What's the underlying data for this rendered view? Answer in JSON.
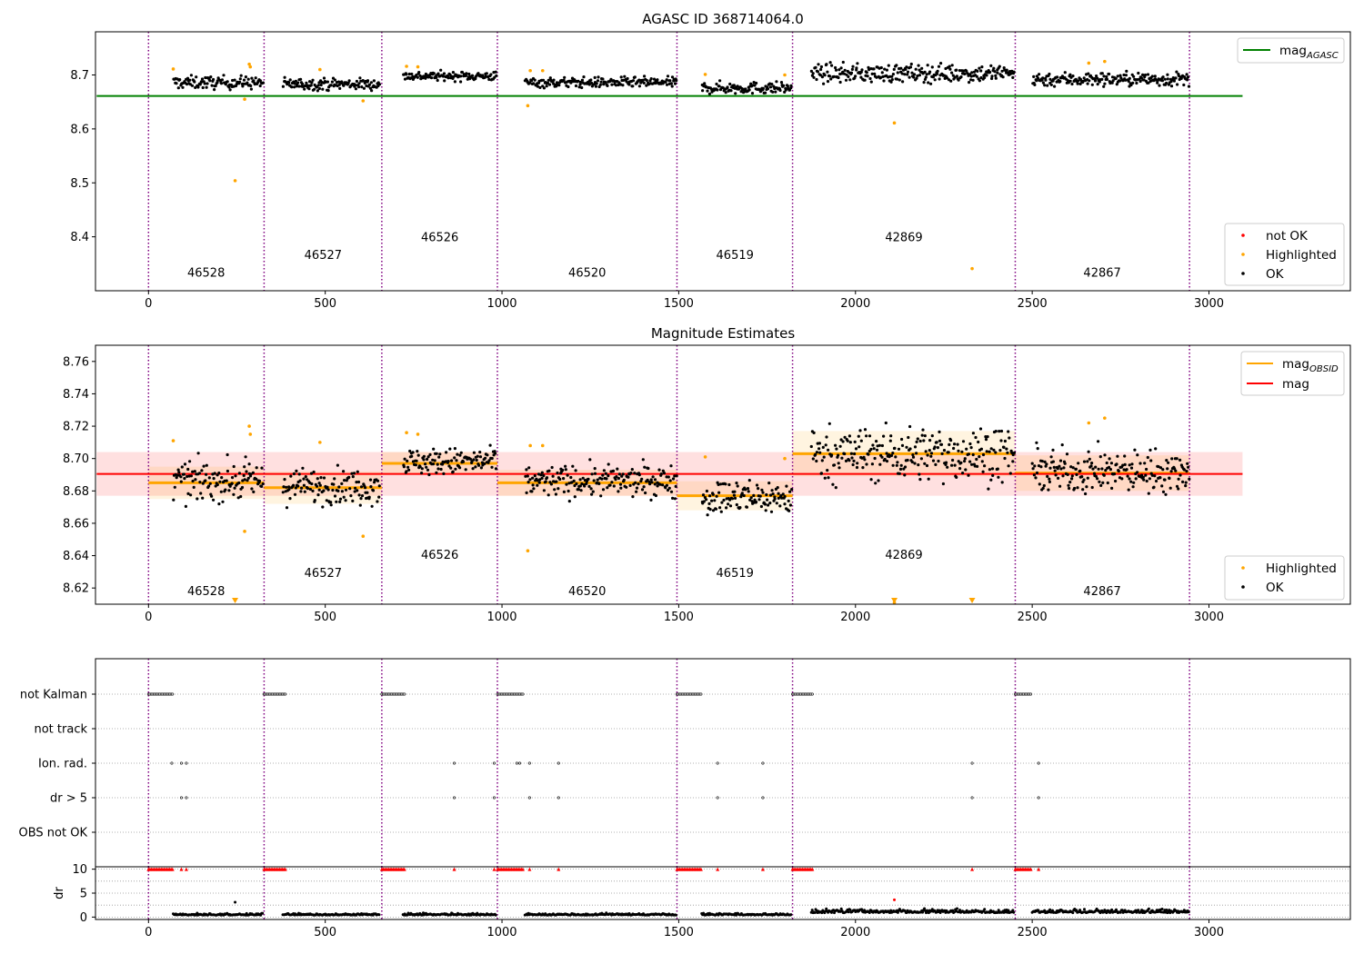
{
  "chart_data": [
    {
      "type": "scatter",
      "title": "AGASC ID 368714064.0",
      "xlim": [
        -150,
        3400
      ],
      "ylim": [
        8.3,
        8.78
      ],
      "xticks": [
        "0",
        "500",
        "1000",
        "1500",
        "2000",
        "2500",
        "3000"
      ],
      "yticks": [
        "8.4",
        "8.5",
        "8.6",
        "8.7"
      ],
      "grid": false,
      "legend": {
        "upper": {
          "position": "top-right",
          "entries": [
            {
              "label": "mag",
              "sub": "AGASC",
              "color": "#008000"
            }
          ]
        },
        "lower": {
          "position": "bottom-right",
          "entries": [
            {
              "label": "not OK",
              "color": "#ff0000"
            },
            {
              "label": "Highlighted",
              "color": "#ffa500"
            },
            {
              "label": "OK",
              "color": "#000000"
            }
          ]
        }
      },
      "mag_agasc": 8.661,
      "mag_agasc_xrange": [
        0,
        3095
      ],
      "obs_boundaries": [
        0,
        327,
        660,
        987,
        1495,
        1822,
        2452,
        2945
      ],
      "obs_labels": [
        {
          "obsid": "46528",
          "x": 163,
          "y": 8.326
        },
        {
          "obsid": "46527",
          "x": 494,
          "y": 8.359
        },
        {
          "obsid": "46526",
          "x": 824,
          "y": 8.392
        },
        {
          "obsid": "46520",
          "x": 1241,
          "y": 8.326
        },
        {
          "obsid": "46519",
          "x": 1659,
          "y": 8.359
        },
        {
          "obsid": "42869",
          "x": 2137,
          "y": 8.392
        },
        {
          "obsid": "42867",
          "x": 2698,
          "y": 8.326
        }
      ],
      "ok_segments": [
        {
          "x": [
            70,
            325
          ],
          "mean": 8.686,
          "spread": 0.01
        },
        {
          "x": [
            380,
            655
          ],
          "mean": 8.683,
          "spread": 0.009
        },
        {
          "x": [
            720,
            985
          ],
          "mean": 8.698,
          "spread": 0.007
        },
        {
          "x": [
            1065,
            1495
          ],
          "mean": 8.686,
          "spread": 0.008
        },
        {
          "x": [
            1565,
            1820
          ],
          "mean": 8.676,
          "spread": 0.009
        },
        {
          "x": [
            1875,
            2450
          ],
          "mean": 8.703,
          "spread": 0.014
        },
        {
          "x": [
            2500,
            2945
          ],
          "mean": 8.692,
          "spread": 0.011
        }
      ],
      "highlighted": [
        {
          "x": 70,
          "y": 8.711
        },
        {
          "x": 245,
          "y": 8.504
        },
        {
          "x": 272,
          "y": 8.655
        },
        {
          "x": 285,
          "y": 8.72
        },
        {
          "x": 288,
          "y": 8.715
        },
        {
          "x": 485,
          "y": 8.71
        },
        {
          "x": 607,
          "y": 8.652
        },
        {
          "x": 730,
          "y": 8.716
        },
        {
          "x": 762,
          "y": 8.715
        },
        {
          "x": 1073,
          "y": 8.643
        },
        {
          "x": 1080,
          "y": 8.708
        },
        {
          "x": 1115,
          "y": 8.708
        },
        {
          "x": 1575,
          "y": 8.701
        },
        {
          "x": 1800,
          "y": 8.7
        },
        {
          "x": 2110,
          "y": 8.611
        },
        {
          "x": 2330,
          "y": 8.341
        },
        {
          "x": 2660,
          "y": 8.722
        },
        {
          "x": 2705,
          "y": 8.725
        }
      ]
    },
    {
      "type": "scatter",
      "title": "Magnitude Estimates",
      "xlim": [
        -150,
        3400
      ],
      "ylim": [
        8.61,
        8.77
      ],
      "xticks": [
        "0",
        "500",
        "1000",
        "1500",
        "2000",
        "2500",
        "3000"
      ],
      "yticks": [
        "8.62",
        "8.64",
        "8.66",
        "8.68",
        "8.70",
        "8.72",
        "8.74",
        "8.76"
      ],
      "grid": false,
      "legend": {
        "upper": {
          "position": "top-right",
          "entries": [
            {
              "label": "mag",
              "sub": "OBSID",
              "color": "#ffa500"
            },
            {
              "label": "mag",
              "color": "#ff0000"
            }
          ]
        },
        "lower": {
          "position": "bottom-right",
          "entries": [
            {
              "label": "Highlighted",
              "color": "#ffa500"
            },
            {
              "label": "OK",
              "color": "#000000"
            }
          ]
        }
      },
      "mag": 8.6905,
      "mag_band": [
        8.677,
        8.704
      ],
      "mag_xrange": [
        0,
        3095
      ],
      "obs_mag": [
        {
          "x": [
            0,
            327
          ],
          "mag": 8.685,
          "band": [
            8.675,
            8.695
          ]
        },
        {
          "x": [
            327,
            660
          ],
          "mag": 8.682,
          "band": [
            8.672,
            8.692
          ]
        },
        {
          "x": [
            660,
            987
          ],
          "mag": 8.697,
          "band": [
            8.69,
            8.704
          ]
        },
        {
          "x": [
            987,
            1495
          ],
          "mag": 8.685,
          "band": [
            8.677,
            8.693
          ]
        },
        {
          "x": [
            1495,
            1822
          ],
          "mag": 8.677,
          "band": [
            8.668,
            8.686
          ]
        },
        {
          "x": [
            1822,
            2452
          ],
          "mag": 8.703,
          "band": [
            8.689,
            8.717
          ]
        },
        {
          "x": [
            2452,
            2945
          ],
          "mag": 8.691,
          "band": [
            8.68,
            8.702
          ]
        }
      ],
      "obs_labels": [
        {
          "obsid": "46528",
          "x": 163,
          "y": 8.6155
        },
        {
          "obsid": "46527",
          "x": 494,
          "y": 8.6268
        },
        {
          "obsid": "46526",
          "x": 824,
          "y": 8.6381
        },
        {
          "obsid": "46520",
          "x": 1241,
          "y": 8.6155
        },
        {
          "obsid": "46519",
          "x": 1659,
          "y": 8.6268
        },
        {
          "obsid": "42869",
          "x": 2137,
          "y": 8.6381
        },
        {
          "obsid": "42867",
          "x": 2698,
          "y": 8.6155
        }
      ],
      "out_of_range_markers": [
        245,
        2110,
        2330
      ]
    },
    {
      "type": "scatter",
      "categories": [
        "not Kalman",
        "not track",
        "Ion. rad.",
        "dr > 5",
        "OBS not OK"
      ],
      "flag_points": {
        "not Kalman": [
          [
            0,
            70
          ],
          [
            327,
            387
          ],
          [
            660,
            727
          ],
          [
            987,
            1060
          ],
          [
            1495,
            1565
          ],
          [
            1822,
            1878
          ],
          [
            2452,
            2497
          ]
        ],
        "not track": [],
        "Ion. rad.": [
          66,
          93,
          107,
          865,
          978,
          1042,
          1050,
          1078,
          1160,
          1610,
          1738,
          2330,
          2518
        ],
        "dr > 5": [
          93,
          107,
          865,
          978,
          1078,
          1160,
          1610,
          1738,
          2330,
          2518
        ],
        "OBS not OK": []
      },
      "dr": {
        "ylabel": "dr",
        "yticks": [
          "0",
          "5",
          "10"
        ],
        "ylim": [
          -0.5,
          10.5
        ],
        "clip_value": 10,
        "clipped_points": [
          93,
          107,
          865,
          978,
          1078,
          1160,
          1610,
          1738,
          2330,
          2518
        ],
        "high_points": [
          {
            "x": 245,
            "y": 3.1
          },
          {
            "x": 2110,
            "y": 3.6
          }
        ]
      }
    }
  ]
}
